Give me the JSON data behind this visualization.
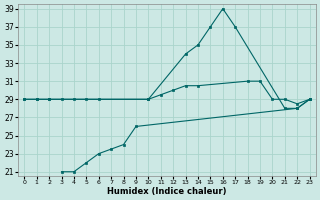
{
  "xlabel": "Humidex (Indice chaleur)",
  "bg_color": "#cce8e4",
  "grid_color": "#aad4cc",
  "line_color": "#006666",
  "xlim": [
    -0.5,
    23.5
  ],
  "ylim": [
    20.5,
    39.5
  ],
  "xticks": [
    0,
    1,
    2,
    3,
    4,
    5,
    6,
    7,
    8,
    9,
    10,
    11,
    12,
    13,
    14,
    15,
    16,
    17,
    18,
    19,
    20,
    21,
    22,
    23
  ],
  "yticks": [
    21,
    23,
    25,
    27,
    29,
    31,
    33,
    35,
    37,
    39
  ],
  "lines": [
    {
      "x": [
        0,
        1,
        2,
        10,
        13,
        14,
        15,
        16,
        17,
        21,
        22,
        23
      ],
      "y": [
        29,
        29,
        29,
        29,
        34,
        35,
        37,
        39,
        37,
        28,
        28,
        29
      ]
    },
    {
      "x": [
        0,
        1,
        2,
        3,
        4,
        5,
        6,
        10,
        11,
        12,
        13,
        14,
        18,
        19,
        20,
        21,
        22,
        23
      ],
      "y": [
        29,
        29,
        29,
        29,
        29,
        29,
        29,
        29,
        29.5,
        30,
        30.5,
        30.5,
        31,
        31,
        29,
        29,
        28.5,
        29
      ]
    },
    {
      "x": [
        3,
        4,
        5,
        6,
        7,
        8,
        9,
        22,
        23
      ],
      "y": [
        21,
        21,
        22,
        23,
        23.5,
        24,
        26,
        28,
        29
      ]
    }
  ]
}
